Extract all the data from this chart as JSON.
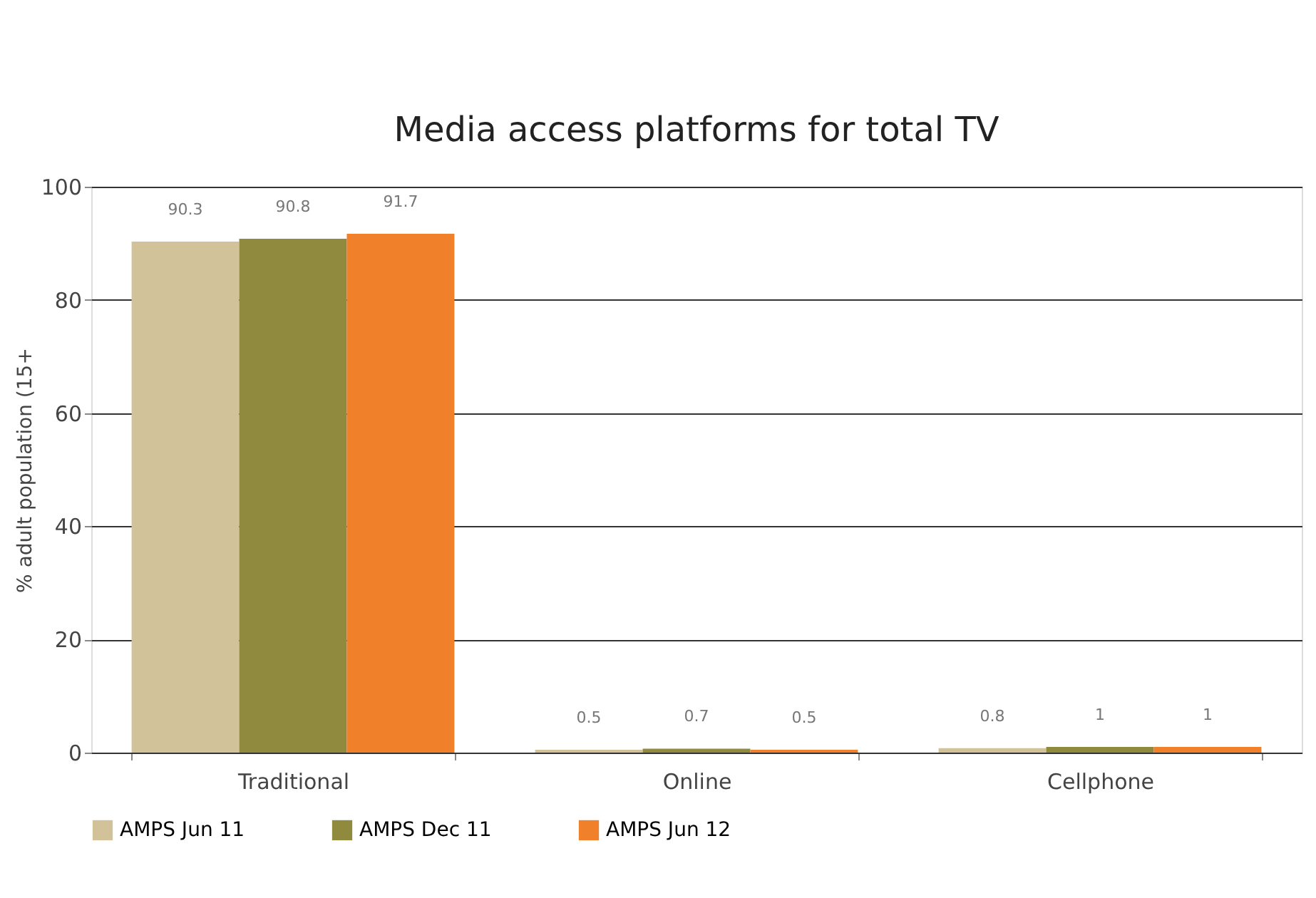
{
  "chart_data": {
    "type": "bar",
    "title": "Media access platforms for total TV",
    "ylabel": "% adult population (15+",
    "categories": [
      "Traditional",
      "Online",
      "Cellphone"
    ],
    "series": [
      {
        "name": "AMPS Jun 11",
        "color": "#d2c29a",
        "values": [
          90.3,
          0.5,
          0.8
        ]
      },
      {
        "name": "AMPS Dec 11",
        "color": "#8f8a3e",
        "values": [
          90.8,
          0.7,
          1
        ]
      },
      {
        "name": "AMPS Jun 12",
        "color": "#f0802a",
        "values": [
          91.7,
          0.5,
          1
        ]
      }
    ],
    "ylim": [
      0,
      100
    ],
    "yticks": [
      0,
      20,
      40,
      60,
      80,
      100
    ],
    "grid": "y",
    "legend": "bottom",
    "data_labels": true
  }
}
